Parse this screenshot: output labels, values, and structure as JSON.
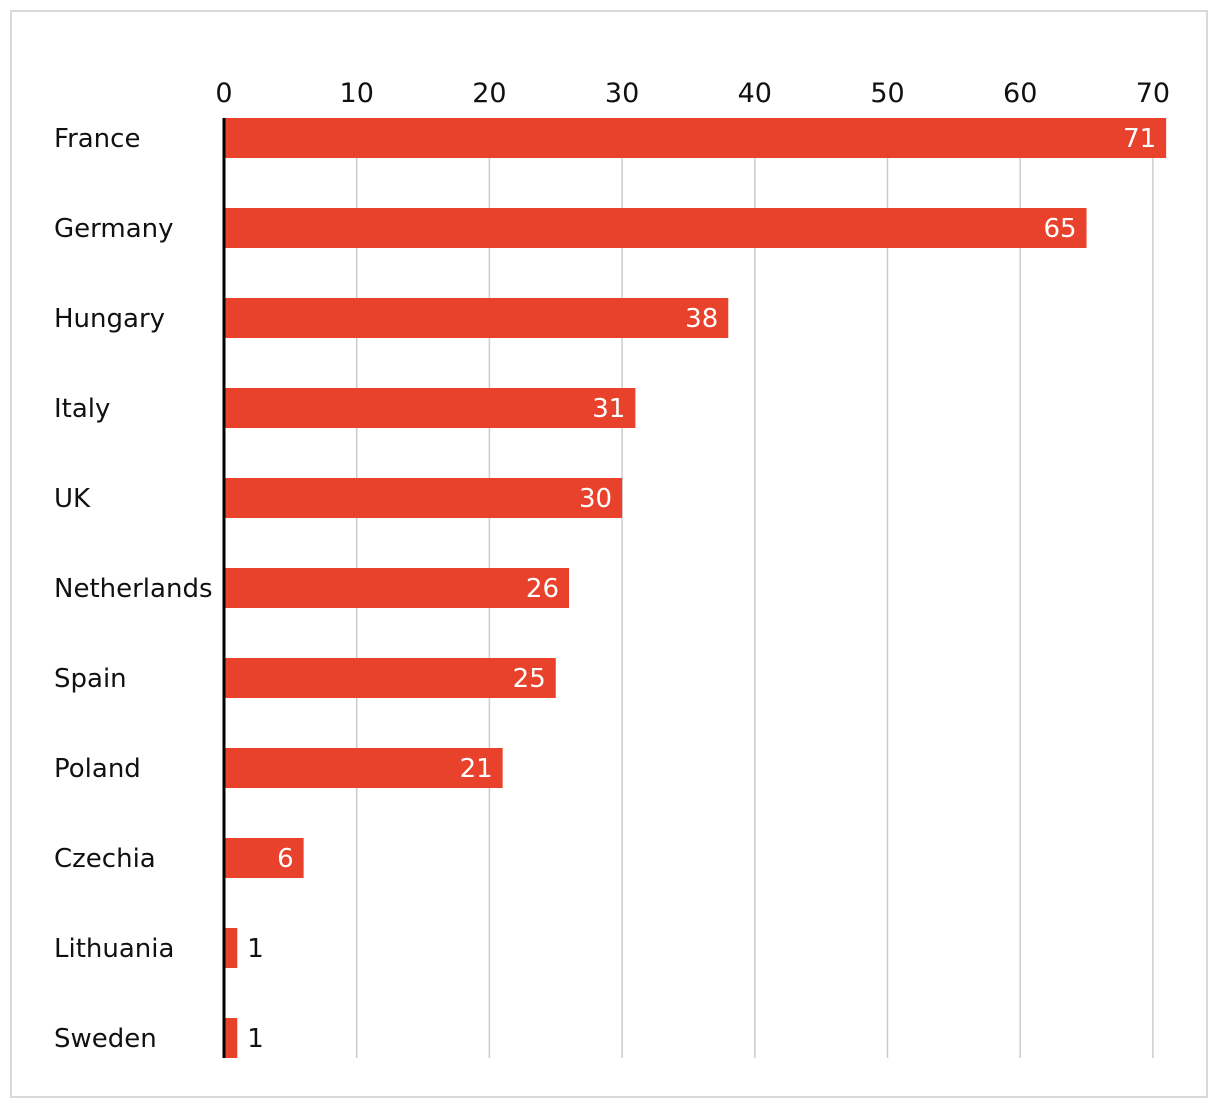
{
  "chart_data": {
    "type": "bar",
    "orientation": "horizontal",
    "title": "",
    "xlabel": "",
    "ylabel": "",
    "xlim": [
      0,
      70
    ],
    "xticks": [
      0,
      10,
      20,
      30,
      40,
      50,
      60,
      70
    ],
    "grid": true,
    "categories": [
      "France",
      "Germany",
      "Hungary",
      "Italy",
      "UK",
      "Netherlands",
      "Spain",
      "Poland",
      "Czechia",
      "Lithuania",
      "Sweden"
    ],
    "values": [
      71,
      65,
      38,
      31,
      30,
      26,
      25,
      21,
      6,
      1,
      1
    ],
    "value_labels": [
      "71",
      "65",
      "38",
      "31",
      "30",
      "26",
      "25",
      "21",
      "6",
      "1",
      "1"
    ],
    "colors": {
      "bar": "#e8412c",
      "grid": "#cccccc",
      "axis": "#000000",
      "text": "#111111",
      "label_inside": "#ffffff",
      "border": "#d9d9d9"
    }
  }
}
